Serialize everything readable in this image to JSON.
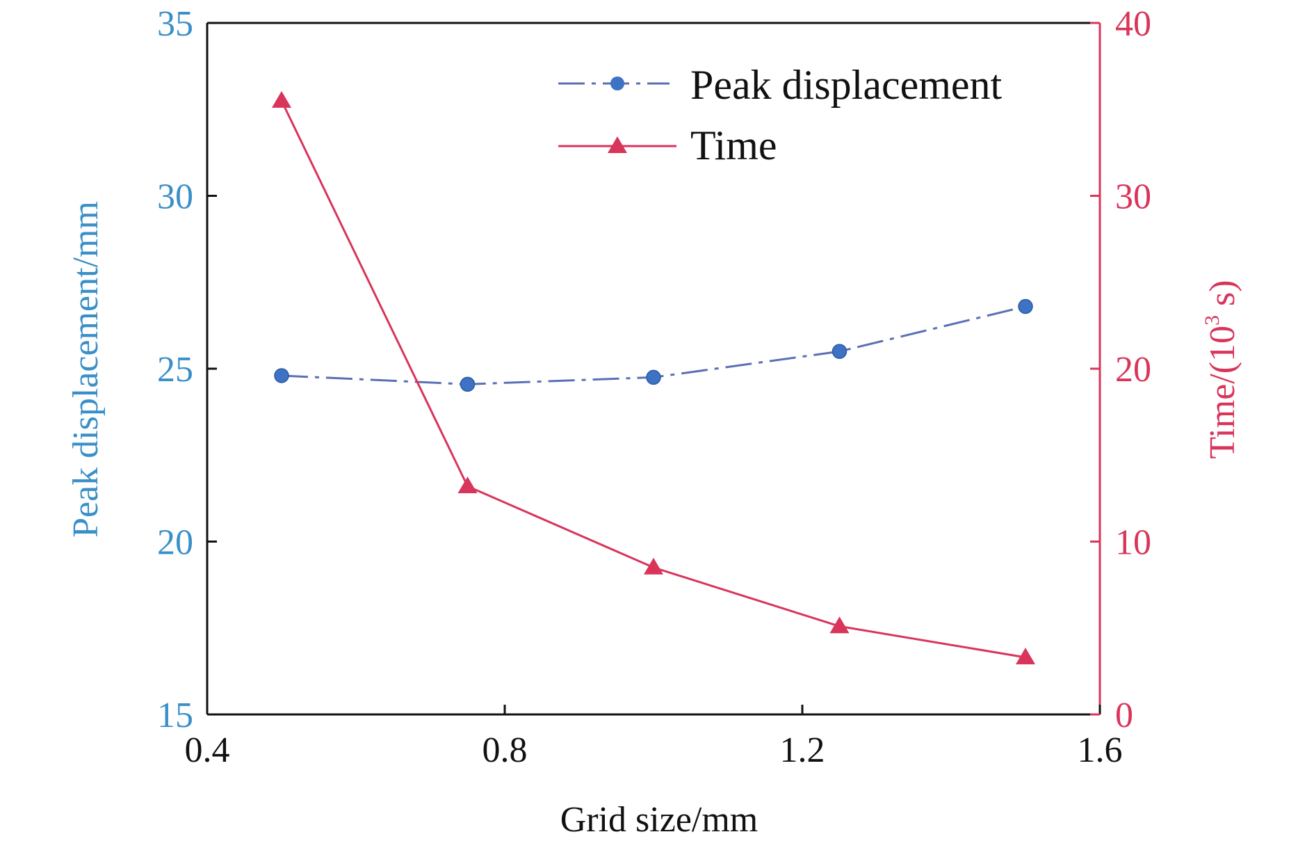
{
  "chart_data": {
    "type": "line",
    "x": [
      0.5,
      0.75,
      1.0,
      1.25,
      1.5
    ],
    "xlabel": "Grid size/mm",
    "xlim": [
      0.4,
      1.6
    ],
    "xticks": [
      "0.4",
      "0.8",
      "1.2",
      "1.6"
    ],
    "y_left": {
      "label": "Peak displacement/mm",
      "lim": [
        15,
        35
      ],
      "ticks": [
        "15",
        "20",
        "25",
        "30",
        "35"
      ],
      "color": "#3a8fc8"
    },
    "y_right": {
      "label_main": "Time/(10",
      "label_sup": "3",
      "label_tail": " s)",
      "lim": [
        0,
        40
      ],
      "ticks": [
        "0",
        "10",
        "20",
        "30",
        "40"
      ],
      "color": "#d9345a"
    },
    "series": [
      {
        "name": "Peak displacement",
        "axis": "left",
        "values": [
          24.8,
          24.55,
          24.75,
          25.5,
          26.8
        ],
        "color": "#5b6fb5",
        "marker": "circle",
        "line_style": "dash-dot"
      },
      {
        "name": "Time",
        "axis": "right",
        "values": [
          35.5,
          13.2,
          8.5,
          5.1,
          3.3
        ],
        "color": "#d9345a",
        "marker": "triangle",
        "line_style": "solid"
      }
    ],
    "legend_position": "top-right",
    "grid": false
  }
}
